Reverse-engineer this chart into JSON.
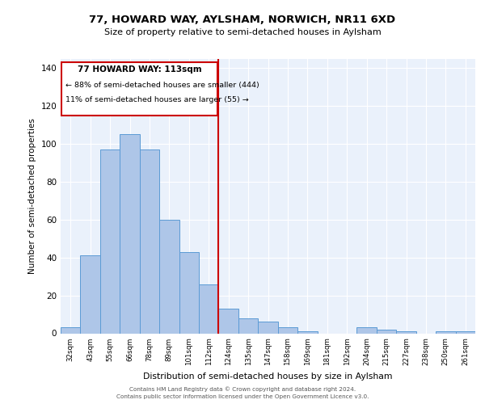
{
  "title1": "77, HOWARD WAY, AYLSHAM, NORWICH, NR11 6XD",
  "title2": "Size of property relative to semi-detached houses in Aylsham",
  "xlabel": "Distribution of semi-detached houses by size in Aylsham",
  "ylabel": "Number of semi-detached properties",
  "categories": [
    "32sqm",
    "43sqm",
    "55sqm",
    "66sqm",
    "78sqm",
    "89sqm",
    "101sqm",
    "112sqm",
    "124sqm",
    "135sqm",
    "147sqm",
    "158sqm",
    "169sqm",
    "181sqm",
    "192sqm",
    "204sqm",
    "215sqm",
    "227sqm",
    "238sqm",
    "250sqm",
    "261sqm"
  ],
  "values": [
    3,
    41,
    97,
    105,
    97,
    60,
    43,
    26,
    13,
    8,
    6,
    3,
    1,
    0,
    0,
    3,
    2,
    1,
    0,
    1,
    1
  ],
  "bar_color": "#aec6e8",
  "bar_edge_color": "#5b9bd5",
  "highlight_index": 7,
  "highlight_color": "#cc0000",
  "annotation_title": "77 HOWARD WAY: 113sqm",
  "annotation_line1": "← 88% of semi-detached houses are smaller (444)",
  "annotation_line2": "11% of semi-detached houses are larger (55) →",
  "ylim": [
    0,
    145
  ],
  "yticks": [
    0,
    20,
    40,
    60,
    80,
    100,
    120,
    140
  ],
  "bg_color": "#eaf1fb",
  "footer1": "Contains HM Land Registry data © Crown copyright and database right 2024.",
  "footer2": "Contains public sector information licensed under the Open Government Licence v3.0."
}
